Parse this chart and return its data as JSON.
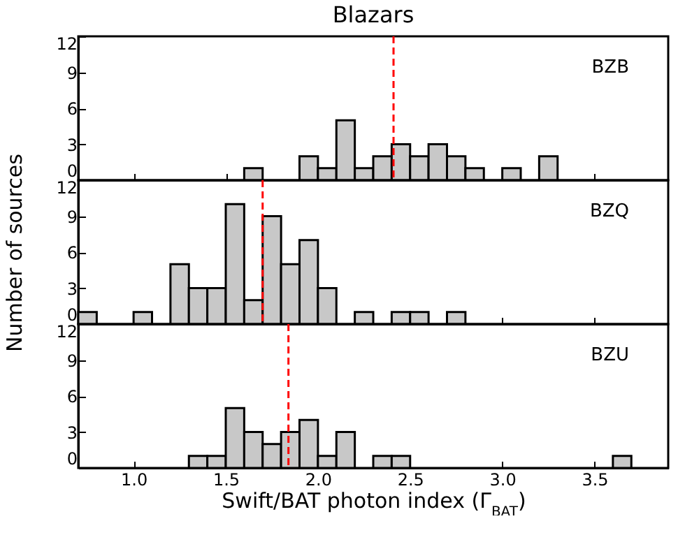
{
  "chart_data": [
    {
      "type": "histogram",
      "title": "Blazars",
      "bins": [
        0.7,
        0.8,
        0.9,
        1.0,
        1.1,
        1.2,
        1.3,
        1.4,
        1.5,
        1.6,
        1.7,
        1.8,
        1.9,
        2.0,
        2.1,
        2.2,
        2.3,
        2.4,
        2.5,
        2.6,
        2.7,
        2.8,
        2.9,
        3.0,
        3.1,
        3.2,
        3.3,
        3.4,
        3.5,
        3.6,
        3.7,
        3.8
      ],
      "values": [
        0,
        0,
        0,
        0,
        0,
        0,
        0,
        0,
        0,
        1,
        0,
        0,
        2,
        1,
        5,
        1,
        2,
        3,
        2,
        3,
        2,
        1,
        0,
        1,
        0,
        2,
        0,
        0,
        0,
        0,
        0
      ],
      "color": "#c8c8c8",
      "xlim": [
        0.7,
        3.9
      ],
      "xticks": [
        1.0,
        1.5,
        2.0,
        2.5,
        3.0,
        3.5
      ],
      "ylim": [
        0,
        12
      ],
      "yticks": [
        0,
        3,
        6,
        9,
        12
      ],
      "tick_labels": "y",
      "annotations": [
        "BZB"
      ],
      "ref_lines": [
        {
          "axis": "x",
          "value": 2.41,
          "color": "#ff0000",
          "line_style": "dashed"
        }
      ]
    },
    {
      "type": "histogram",
      "ylabel": "Number of sources",
      "bins": [
        0.7,
        0.8,
        0.9,
        1.0,
        1.1,
        1.2,
        1.3,
        1.4,
        1.5,
        1.6,
        1.7,
        1.8,
        1.9,
        2.0,
        2.1,
        2.2,
        2.3,
        2.4,
        2.5,
        2.6,
        2.7,
        2.8,
        2.9,
        3.0,
        3.1,
        3.2,
        3.3,
        3.4,
        3.5,
        3.6,
        3.7,
        3.8
      ],
      "values": [
        1,
        0,
        0,
        1,
        0,
        5,
        3,
        3,
        10,
        2,
        9,
        5,
        7,
        3,
        0,
        1,
        0,
        1,
        1,
        0,
        1,
        0,
        0,
        0,
        0,
        0,
        0,
        0,
        0,
        0,
        0
      ],
      "color": "#c8c8c8",
      "xlim": [
        0.7,
        3.9
      ],
      "xticks": [
        1.0,
        1.5,
        2.0,
        2.5,
        3.0,
        3.5
      ],
      "ylim": [
        0,
        12
      ],
      "yticks": [
        0,
        3,
        6,
        9,
        12
      ],
      "tick_labels": "y",
      "annotations": [
        "BZQ"
      ],
      "ref_lines": [
        {
          "axis": "x",
          "value": 1.7,
          "color": "#ff0000",
          "line_style": "dashed"
        }
      ]
    },
    {
      "type": "histogram",
      "xlabel": "Swift/BAT photon index (Γ$_{BAT}$)",
      "bins": [
        0.7,
        0.8,
        0.9,
        1.0,
        1.1,
        1.2,
        1.3,
        1.4,
        1.5,
        1.6,
        1.7,
        1.8,
        1.9,
        2.0,
        2.1,
        2.2,
        2.3,
        2.4,
        2.5,
        2.6,
        2.7,
        2.8,
        2.9,
        3.0,
        3.1,
        3.2,
        3.3,
        3.4,
        3.5,
        3.6,
        3.7,
        3.8
      ],
      "values": [
        0,
        0,
        0,
        0,
        0,
        0,
        1,
        1,
        5,
        3,
        2,
        3,
        4,
        1,
        3,
        0,
        1,
        1,
        0,
        0,
        0,
        0,
        0,
        0,
        0,
        0,
        0,
        0,
        0,
        1,
        0
      ],
      "color": "#c8c8c8",
      "xlim": [
        0.7,
        3.9
      ],
      "xticks": [
        {
          "value": 1,
          "label": "1.0"
        },
        1.5,
        {
          "value": 2,
          "label": "2.0"
        },
        2.5,
        {
          "value": 3,
          "label": "3.0"
        },
        3.5
      ],
      "ylim": [
        0,
        12
      ],
      "yticks": [
        0,
        3,
        6,
        9,
        12
      ],
      "annotations": [
        "BZU"
      ],
      "ref_lines": [
        {
          "axis": "x",
          "value": 1.84,
          "color": "#ff0000",
          "line_style": "dashed"
        }
      ]
    }
  ]
}
